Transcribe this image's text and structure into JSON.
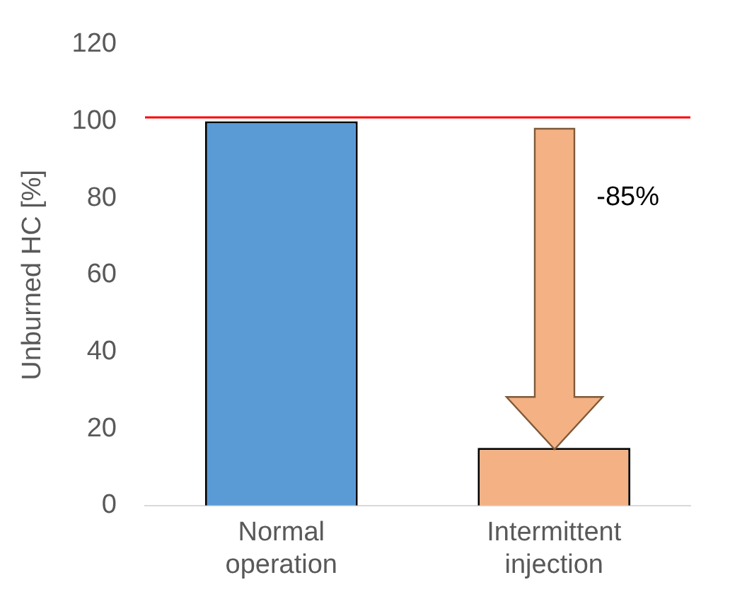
{
  "chart_data": {
    "type": "bar",
    "categories": [
      "Normal operation",
      "Intermittent injection"
    ],
    "ylabel": "Unburned HC [%]",
    "values": [
      100,
      15
    ],
    "colors": [
      "#5b9bd5",
      "#f4b183"
    ],
    "ylim": [
      0,
      120
    ],
    "yticks": [
      0,
      20,
      40,
      60,
      80,
      100,
      120
    ],
    "grid": false,
    "legend": false,
    "ref_lines": [
      {
        "axis": "y",
        "value": 101,
        "color": "#ff0000"
      }
    ],
    "annotations": [
      "-85%"
    ]
  }
}
